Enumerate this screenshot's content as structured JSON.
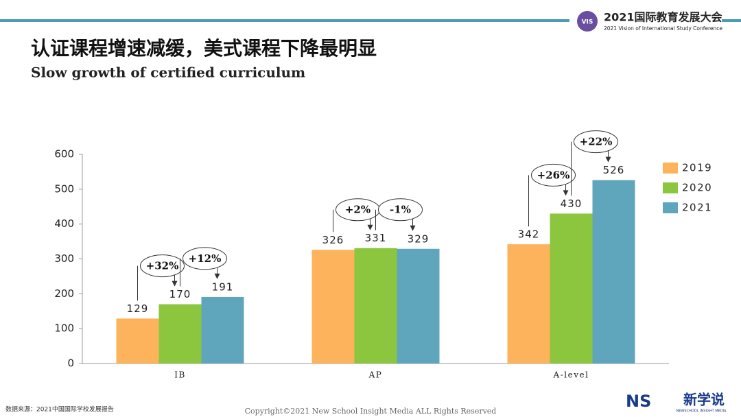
{
  "header": {
    "conference": "2021国际教育发展大会",
    "conference_en": "2021 Vision of International Study Conference",
    "logo": "VIS"
  },
  "chart_data": {
    "type": "bar",
    "title": "认证课程增速减缓，美式课程下降最明显",
    "subtitle": "Slow growth of certified curriculum",
    "categories": [
      "IB",
      "AP",
      "A-level"
    ],
    "series": [
      {
        "name": "2019",
        "color": "#fdb35b",
        "values": [
          129,
          326,
          342
        ]
      },
      {
        "name": "2020",
        "color": "#8cc63f",
        "values": [
          170,
          331,
          430
        ]
      },
      {
        "name": "2021",
        "color": "#5fa6bd",
        "values": [
          191,
          329,
          526
        ]
      }
    ],
    "annotations": [
      "+32%",
      "+12%",
      "+2%",
      "-1%",
      "+26%",
      "+22%"
    ],
    "ylim": [
      0,
      600
    ],
    "yticks": [
      0,
      100,
      200,
      300,
      400,
      500,
      600
    ],
    "legend": "right"
  },
  "footer": {
    "source": "数据来源：2021中国国际学校发展报告",
    "copyright": "Copyright©2021 New School Insight Media ALL Rights Reserved",
    "brand": "NS",
    "brand_cn": "新学说",
    "brand_en": "NEWSCHOOL INSIGHT MEDIA"
  }
}
